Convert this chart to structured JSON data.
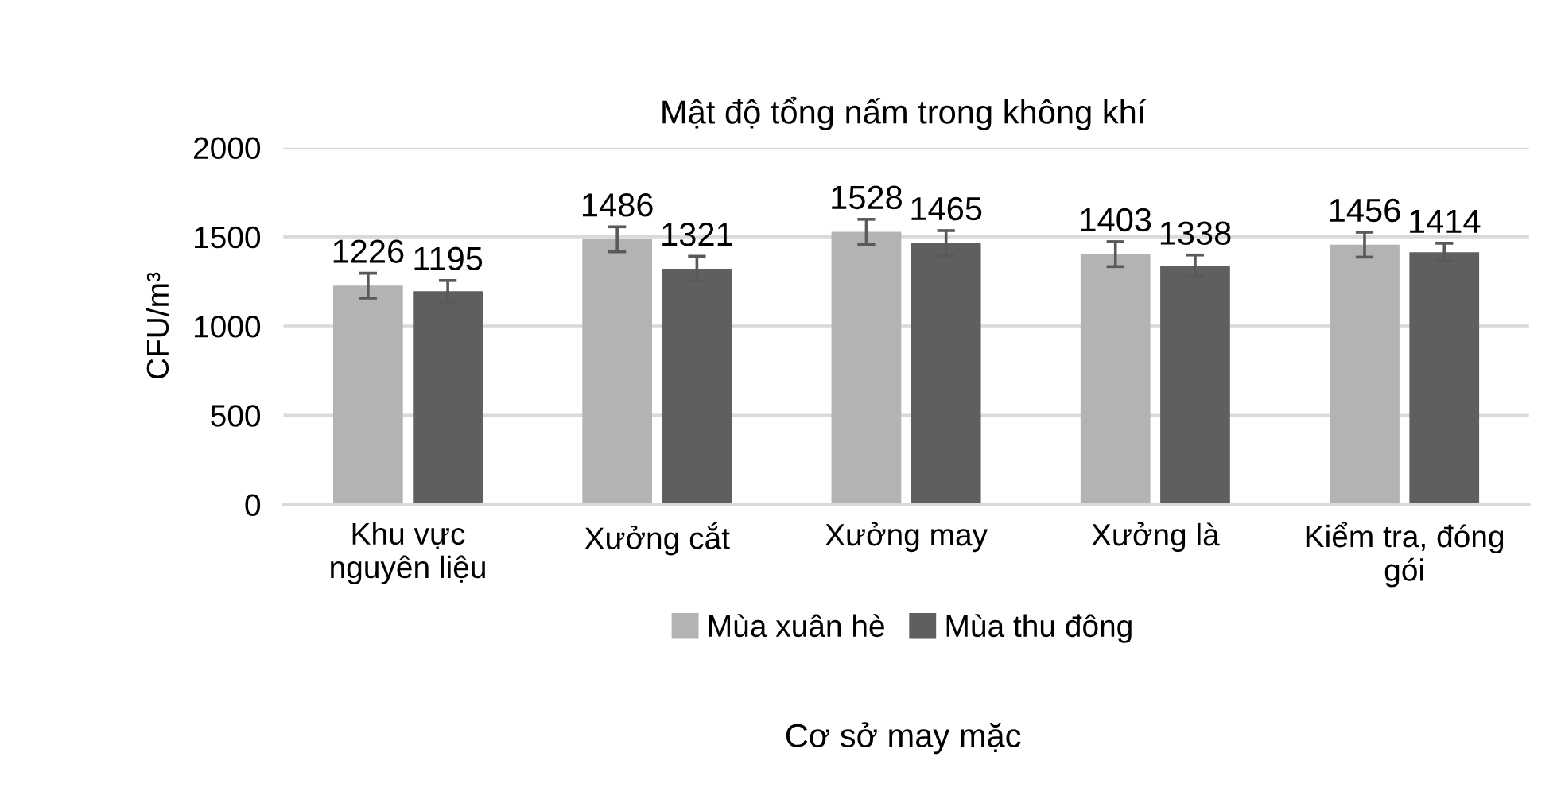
{
  "chart_data": {
    "type": "bar",
    "title": "Mật độ tổng nấm trong không khí",
    "xlabel": "Cơ sở may mặc",
    "ylabel": "CFU/m³",
    "categories": [
      "Khu vực\nnguyên liệu",
      "Xưởng cắt",
      "Xưởng may",
      "Xưởng là",
      "Kiểm tra, đóng\ngói"
    ],
    "series": [
      {
        "name": "Mùa xuân hè",
        "color": "#b3b3b3",
        "values": [
          1226,
          1486,
          1528,
          1403,
          1456
        ],
        "errors": [
          70,
          70,
          70,
          70,
          70
        ]
      },
      {
        "name": "Mùa thu đông",
        "color": "#5f5f5f",
        "values": [
          1195,
          1321,
          1465,
          1338,
          1414
        ],
        "errors": [
          60,
          70,
          70,
          60,
          50
        ]
      }
    ],
    "ylim": [
      0,
      2000
    ],
    "yticks": [
      0,
      500,
      1000,
      1500,
      2000
    ],
    "grid": "y",
    "legend": "bottom",
    "data_labels": true
  }
}
